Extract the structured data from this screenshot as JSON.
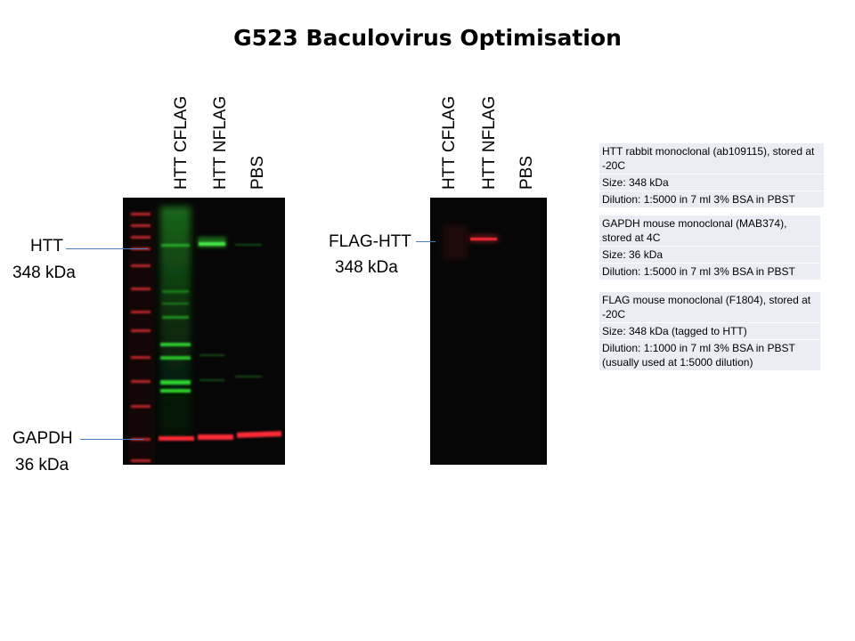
{
  "title": "G523 Baculovirus Optimisation",
  "left_blot": {
    "lanes": [
      "HTT CFLAG",
      "HTT NFLAG",
      "PBS"
    ],
    "labels": [
      {
        "name": "HTT",
        "size": "348 kDa"
      },
      {
        "name": "GAPDH",
        "size": "36 kDa"
      }
    ]
  },
  "right_blot": {
    "lanes": [
      "HTT CFLAG",
      "HTT NFLAG",
      "PBS"
    ],
    "labels": [
      {
        "name": "FLAG-HTT",
        "size": "348 kDa"
      }
    ]
  },
  "antibody_info": [
    {
      "description": "HTT rabbit monoclonal (ab109115), stored at -20C",
      "size": "Size: 348 kDa",
      "dilution": "Dilution: 1:5000 in 7 ml 3% BSA in PBST"
    },
    {
      "description": "GAPDH mouse monoclonal (MAB374), stored at 4C",
      "size": "Size: 36 kDa",
      "dilution": "Dilution: 1:5000 in 7 ml 3% BSA in PBST"
    },
    {
      "description": "FLAG mouse monoclonal (F1804), stored at -20C",
      "size": "Size: 348 kDa (tagged to HTT)",
      "dilution": "Dilution: 1:1000 in 7 ml 3% BSA in PBST (usually used at 1:5000 dilution)"
    }
  ],
  "colors": {
    "blot_background": "#060606",
    "ladder": "#c0282c",
    "htt_green": "#2fd52f",
    "gapdh_red": "#ff2a35",
    "flag_red": "#ff2a35",
    "pointer_line": "#4a7ebb",
    "info_fill": "#eaeef4"
  }
}
